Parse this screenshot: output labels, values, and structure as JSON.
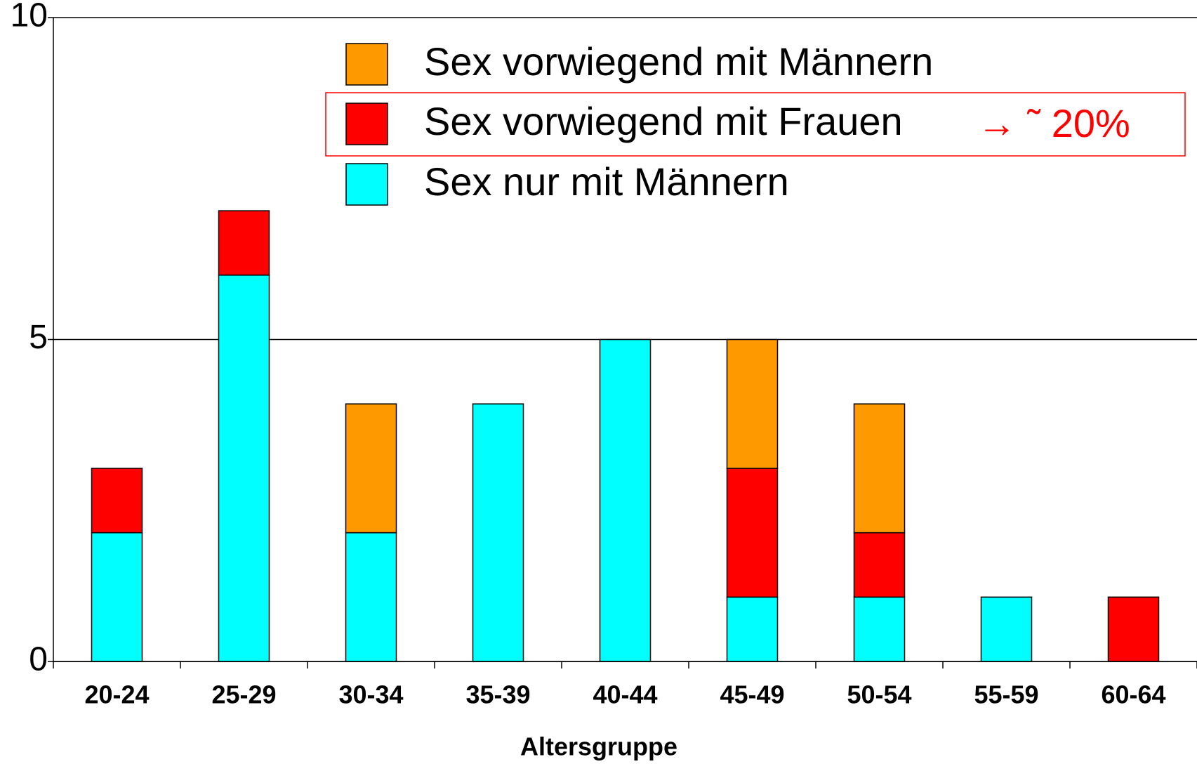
{
  "chart_data": {
    "type": "stacked_bar",
    "categories": [
      "20-24",
      "25-29",
      "30-34",
      "35-39",
      "40-44",
      "45-49",
      "50-54",
      "55-59",
      "60-64"
    ],
    "series": [
      {
        "name": "Sex nur mit Männern",
        "color": "#00ffff",
        "values": [
          2,
          6,
          2,
          4,
          5,
          1,
          1,
          1,
          0
        ]
      },
      {
        "name": "Sex vorwiegend mit Frauen",
        "color": "#ff0000",
        "values": [
          1,
          1,
          0,
          0,
          0,
          2,
          1,
          0,
          1
        ]
      },
      {
        "name": "Sex vorwiegend mit Männern",
        "color": "#ff9900",
        "values": [
          0,
          0,
          2,
          0,
          0,
          2,
          2,
          0,
          0
        ]
      }
    ],
    "x_label": "Altersgruppe",
    "annotation": "→ ˜ 20%",
    "ylim": [
      0,
      10
    ],
    "yticks": [
      0,
      5,
      10
    ],
    "grid": true
  }
}
